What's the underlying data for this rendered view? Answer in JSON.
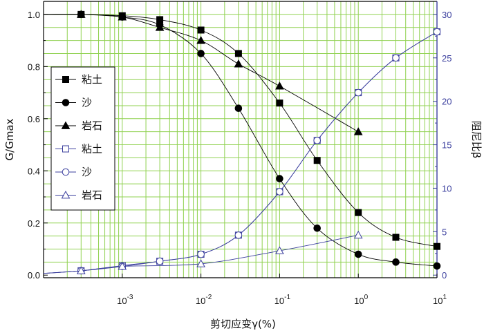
{
  "chart_data": {
    "type": "line",
    "xlabel": "剪切应变γ(%)",
    "ylabel_left": "G/Gmax",
    "ylabel_right": "阻尼比β",
    "x_scale": "log",
    "xlim": [
      0.0001,
      10
    ],
    "ylim_left": [
      -0.01,
      1.05
    ],
    "ylim_right": [
      -0.3,
      31.5
    ],
    "x_tick_labels": [
      {
        "base": "10",
        "exp": "-3",
        "value": 0.001
      },
      {
        "base": "10",
        "exp": "-2",
        "value": 0.01
      },
      {
        "base": "10",
        "exp": "-1",
        "value": 0.1
      },
      {
        "base": "10",
        "exp": "0",
        "value": 1
      },
      {
        "base": "10",
        "exp": "1",
        "value": 10
      }
    ],
    "y_left_ticks": [
      "0.0",
      "0.2",
      "0.4",
      "0.6",
      "0.8",
      "1.0"
    ],
    "y_right_ticks": [
      "0",
      "5",
      "10",
      "15",
      "20",
      "25",
      "30"
    ],
    "grid": true,
    "grid_color": "#8fd14f",
    "legend_position": "left",
    "colors": {
      "modulus": "#000000",
      "damping": "#3b3f9e",
      "grid": "#8fd14f"
    },
    "series": [
      {
        "name": "粘土",
        "axis": "left",
        "marker": "square-filled",
        "x": [
          0.0003,
          0.001,
          0.003,
          0.01,
          0.03,
          0.1,
          0.3,
          1,
          3,
          10
        ],
        "y": [
          1.0,
          0.995,
          0.98,
          0.94,
          0.85,
          0.66,
          0.44,
          0.24,
          0.145,
          0.11
        ]
      },
      {
        "name": "沙",
        "axis": "left",
        "marker": "circle-filled",
        "x": [
          0.0003,
          0.001,
          0.003,
          0.01,
          0.03,
          0.1,
          0.3,
          1,
          3,
          10
        ],
        "y": [
          1.0,
          0.99,
          0.96,
          0.85,
          0.64,
          0.37,
          0.18,
          0.08,
          0.05,
          0.035
        ]
      },
      {
        "name": "岩石",
        "axis": "left",
        "marker": "triangle-filled",
        "x": [
          0.0003,
          0.001,
          0.003,
          0.01,
          0.03,
          0.1,
          1
        ],
        "y": [
          1.0,
          0.99,
          0.95,
          0.9,
          0.81,
          0.725,
          0.55
        ]
      },
      {
        "name": "粘土",
        "axis": "right",
        "marker": "square-open",
        "x": [
          0.0003,
          0.001,
          0.003,
          0.01,
          0.03,
          0.1,
          0.3,
          1,
          3,
          10
        ],
        "y": [
          0.5,
          1.1,
          1.6,
          2.4,
          4.6,
          9.6,
          15.5,
          21.0,
          25.0,
          28.0
        ]
      },
      {
        "name": "沙",
        "axis": "right",
        "marker": "circle-open",
        "x": [
          0.0003,
          0.001,
          0.003,
          0.01,
          0.03,
          0.1,
          0.3,
          1,
          3,
          10
        ],
        "y": [
          0.5,
          1.0,
          1.6,
          2.4,
          4.6,
          9.6,
          15.5,
          21.0,
          25.0,
          28.0
        ]
      },
      {
        "name": "岩石",
        "axis": "right",
        "marker": "triangle-open",
        "x": [
          0.0003,
          0.001,
          0.01,
          0.1,
          1
        ],
        "y": [
          0.5,
          1.0,
          1.3,
          2.8,
          4.6
        ]
      }
    ]
  }
}
